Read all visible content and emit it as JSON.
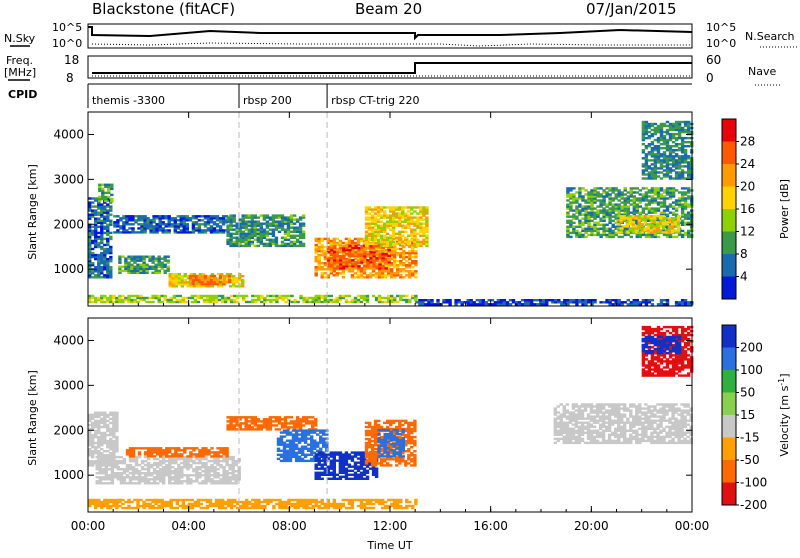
{
  "header": {
    "station": "Blackstone (fitACF)",
    "beam": "Beam 20",
    "date": "07/Jan/2015"
  },
  "top_panels": {
    "nsky_label": "N.Sky",
    "nsky_ticks": [
      "10^5",
      "10^0"
    ],
    "nsearch_label": "N.Search",
    "nsearch_ticks": [
      "10^5",
      "10^0"
    ],
    "freq_label": "Freq.",
    "freq_unit": "[MHz]",
    "freq_ticks": [
      "18",
      "8"
    ],
    "nave_label": "Nave",
    "nave_ticks": [
      "60",
      "0"
    ],
    "cpid_label": "CPID",
    "cpid_modes": [
      {
        "label": "themis -3300",
        "start_hour": 0
      },
      {
        "label": "rbsp 200",
        "start_hour": 6
      },
      {
        "label": "rbsp CT-trig 220",
        "start_hour": 9.5
      }
    ]
  },
  "chart_data": [
    {
      "type": "heatmap",
      "title": "",
      "xlabel": "",
      "ylabel": "Slant Range [km]",
      "xlim_hours": [
        0,
        24
      ],
      "ylim": [
        180,
        4500
      ],
      "xticks": [
        "00:00",
        "04:00",
        "08:00",
        "12:00",
        "16:00",
        "20:00",
        "00:00"
      ],
      "yticks": [
        1000,
        2000,
        3000,
        4000
      ],
      "colorbar": {
        "label": "Power [dB]",
        "ticks": [
          28,
          24,
          20,
          16,
          12,
          8,
          4
        ],
        "colors": [
          "#e8000b",
          "#ff5a00",
          "#ff9a00",
          "#ffd200",
          "#8fd000",
          "#3a9a4a",
          "#1a6ab0",
          "#0018d8"
        ]
      },
      "regions": [
        {
          "t0": 0.0,
          "t1": 0.9,
          "r0": 800,
          "r1": 2600,
          "v": 6
        },
        {
          "t0": 0.4,
          "t1": 1.0,
          "r0": 2500,
          "r1": 2900,
          "v": 10
        },
        {
          "t0": 1.0,
          "t1": 5.5,
          "r0": 1800,
          "r1": 2200,
          "v": 5
        },
        {
          "t0": 1.2,
          "t1": 3.2,
          "r0": 900,
          "r1": 1300,
          "v": 10
        },
        {
          "t0": 3.2,
          "t1": 6.2,
          "r0": 600,
          "r1": 900,
          "v": 18
        },
        {
          "t0": 4.0,
          "t1": 5.6,
          "r0": 650,
          "r1": 850,
          "v": 24
        },
        {
          "t0": 5.5,
          "t1": 8.5,
          "r0": 1500,
          "r1": 2200,
          "v": 9
        },
        {
          "t0": 0.0,
          "t1": 13.0,
          "r0": 250,
          "r1": 400,
          "v": 14
        },
        {
          "t0": 9.0,
          "t1": 13.0,
          "r0": 800,
          "r1": 1700,
          "v": 22
        },
        {
          "t0": 9.5,
          "t1": 12.0,
          "r0": 1000,
          "r1": 1500,
          "v": 26
        },
        {
          "t0": 11.0,
          "t1": 13.5,
          "r0": 1500,
          "r1": 2400,
          "v": 18
        },
        {
          "t0": 13.0,
          "t1": 24.0,
          "r0": 200,
          "r1": 300,
          "v": 4
        },
        {
          "t0": 19.0,
          "t1": 24.0,
          "r0": 1700,
          "r1": 2800,
          "v": 10
        },
        {
          "t0": 21.0,
          "t1": 23.5,
          "r0": 1800,
          "r1": 2200,
          "v": 18
        },
        {
          "t0": 22.0,
          "t1": 24.0,
          "r0": 3000,
          "r1": 4300,
          "v": 8
        }
      ]
    },
    {
      "type": "heatmap",
      "title": "",
      "xlabel": "Time UT",
      "ylabel": "Slant Range [km]",
      "xlim_hours": [
        0,
        24
      ],
      "ylim": [
        180,
        4500
      ],
      "xticks": [
        "00:00",
        "04:00",
        "08:00",
        "12:00",
        "16:00",
        "20:00",
        "00:00"
      ],
      "yticks": [
        1000,
        2000,
        3000,
        4000
      ],
      "colorbar": {
        "label": "Velocity [m s",
        "label_superscript": "-1",
        "label_end": "]",
        "ticks": [
          200,
          100,
          50,
          15,
          -15,
          -50,
          -100,
          -200
        ],
        "colors": [
          "#1030c8",
          "#2a70e0",
          "#30b040",
          "#8ad050",
          "#c8c8c8",
          "#ffa000",
          "#ff6a00",
          "#e01010"
        ]
      },
      "regions": [
        {
          "t0": 0.0,
          "t1": 1.2,
          "r0": 1200,
          "r1": 2400,
          "v": 0
        },
        {
          "t0": 0.3,
          "t1": 6.0,
          "r0": 800,
          "r1": 1400,
          "v": 0
        },
        {
          "t0": 1.5,
          "t1": 5.5,
          "r0": 1400,
          "r1": 1600,
          "v": -60
        },
        {
          "t0": 0.0,
          "t1": 13.0,
          "r0": 250,
          "r1": 450,
          "v": -40
        },
        {
          "t0": 5.5,
          "t1": 9.0,
          "r0": 2000,
          "r1": 2300,
          "v": -60
        },
        {
          "t0": 7.5,
          "t1": 9.5,
          "r0": 1300,
          "r1": 2000,
          "v": 120
        },
        {
          "t0": 9.0,
          "t1": 11.5,
          "r0": 900,
          "r1": 1500,
          "v": 180
        },
        {
          "t0": 11.0,
          "t1": 13.0,
          "r0": 1200,
          "r1": 2200,
          "v": -80
        },
        {
          "t0": 11.5,
          "t1": 12.5,
          "r0": 1400,
          "r1": 2000,
          "v": 120
        },
        {
          "t0": 18.5,
          "t1": 24.0,
          "r0": 1700,
          "r1": 2600,
          "v": 0
        },
        {
          "t0": 22.0,
          "t1": 24.0,
          "r0": 3200,
          "r1": 4300,
          "v": -150
        },
        {
          "t0": 22.0,
          "t1": 23.5,
          "r0": 3700,
          "r1": 4100,
          "v": 180
        }
      ]
    }
  ]
}
